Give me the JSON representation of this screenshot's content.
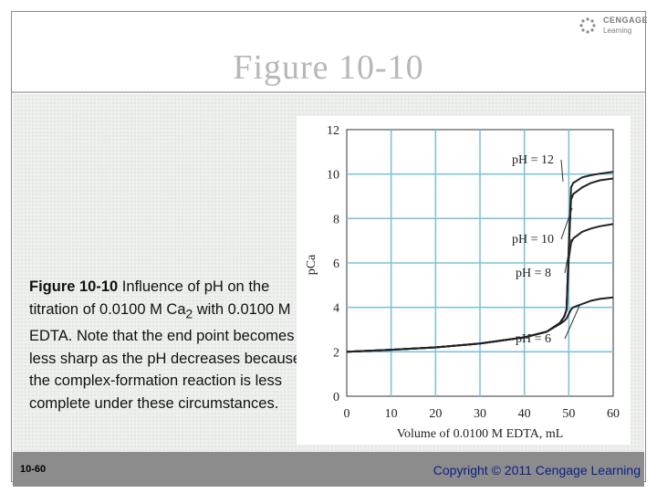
{
  "slide": {
    "title": "Figure 10-10",
    "logo_top": "CENGAGE",
    "logo_bottom": "Learning",
    "caption_label": "Figure 10-10",
    "caption_text": " Influence of pH on the titration of 0.0100 M Ca",
    "caption_sub": "2",
    "caption_text2": " with 0.0100 M EDTA. Note that the end point becomes less sharp as the pH decreases because the complex-formation reaction is less complete under these circumstances.",
    "slide_number": "10-60",
    "copyright": "Copyright © 2011 Cengage Learning",
    "colors": {
      "grid": "#7fc3d8",
      "curve": "#222222",
      "footer": "#8c8c8c",
      "copyright": "#0b1d8a"
    }
  },
  "chart_data": {
    "type": "line",
    "title": "",
    "xlabel": "Volume of 0.0100 M EDTA, mL",
    "ylabel": "pCa",
    "xlim": [
      0,
      60
    ],
    "ylim": [
      0,
      12
    ],
    "xticks": [
      0,
      10,
      20,
      30,
      40,
      50,
      60
    ],
    "yticks": [
      0,
      2,
      4,
      6,
      8,
      10,
      12
    ],
    "grid": true,
    "x_tick_labels": [
      "0",
      "10",
      "20",
      "30",
      "40",
      "50",
      "60"
    ],
    "y_tick_labels": [
      "0",
      "2",
      "4",
      "6",
      "8",
      "10",
      "12"
    ],
    "series": [
      {
        "name": "pH = 12",
        "x": [
          0,
          10,
          20,
          30,
          40,
          45,
          48,
          49,
          49.5,
          50,
          50.5,
          51,
          53,
          55,
          57,
          60
        ],
        "y": [
          2.0,
          2.09,
          2.2,
          2.37,
          2.65,
          2.9,
          3.3,
          3.6,
          3.9,
          6.7,
          9.4,
          9.6,
          9.85,
          9.95,
          10.02,
          10.1
        ]
      },
      {
        "name": "pH = 10",
        "x": [
          0,
          10,
          20,
          30,
          40,
          45,
          48,
          49,
          49.5,
          50,
          50.5,
          51,
          53,
          55,
          57,
          60
        ],
        "y": [
          2.0,
          2.09,
          2.2,
          2.37,
          2.65,
          2.9,
          3.3,
          3.6,
          3.9,
          6.6,
          8.85,
          9.1,
          9.4,
          9.6,
          9.72,
          9.8
        ]
      },
      {
        "name": "pH = 8",
        "x": [
          0,
          10,
          20,
          30,
          40,
          45,
          48,
          49,
          49.5,
          50,
          50.5,
          51,
          53,
          55,
          57,
          60
        ],
        "y": [
          2.0,
          2.09,
          2.2,
          2.37,
          2.65,
          2.9,
          3.3,
          3.6,
          3.9,
          6.2,
          6.9,
          7.1,
          7.4,
          7.55,
          7.65,
          7.75
        ]
      },
      {
        "name": "pH = 6",
        "x": [
          0,
          10,
          20,
          30,
          40,
          45,
          48,
          49,
          49.5,
          50,
          50.5,
          51,
          53,
          55,
          57,
          60
        ],
        "y": [
          2.0,
          2.09,
          2.2,
          2.37,
          2.65,
          2.9,
          3.25,
          3.4,
          3.5,
          3.7,
          3.9,
          4.0,
          4.15,
          4.3,
          4.38,
          4.45
        ]
      }
    ]
  }
}
